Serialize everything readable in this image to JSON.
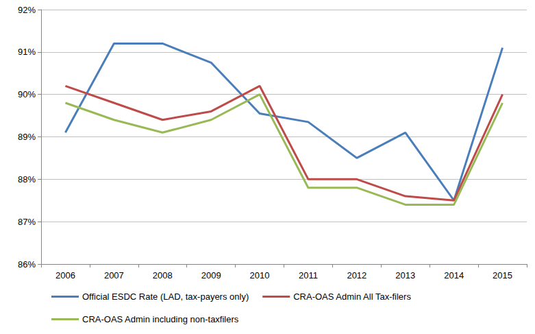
{
  "chart_data": {
    "type": "line",
    "categories": [
      "2006",
      "2007",
      "2008",
      "2009",
      "2010",
      "2011",
      "2012",
      "2013",
      "2014",
      "2015"
    ],
    "series": [
      {
        "name": "Official ESDC Rate (LAD, tax-payers only)",
        "color": "#4a7ebb",
        "values": [
          89.1,
          91.2,
          91.2,
          90.75,
          89.55,
          89.35,
          88.5,
          89.1,
          87.5,
          91.1
        ]
      },
      {
        "name": "CRA-OAS Admin All Tax-filers",
        "color": "#be4b48",
        "values": [
          90.2,
          89.8,
          89.4,
          89.6,
          90.2,
          88.0,
          88.0,
          87.6,
          87.5,
          90.0
        ]
      },
      {
        "name": "CRA-OAS Admin including non-taxfilers",
        "color": "#98b954",
        "values": [
          89.8,
          89.4,
          89.1,
          89.4,
          90.0,
          87.8,
          87.8,
          87.4,
          87.4,
          89.8
        ]
      }
    ],
    "ylim": [
      86,
      92
    ],
    "yticks": [
      {
        "value": 86,
        "label": "86%"
      },
      {
        "value": 87,
        "label": "87%"
      },
      {
        "value": 88,
        "label": "88%"
      },
      {
        "value": 89,
        "label": "89%"
      },
      {
        "value": 90,
        "label": "90%"
      },
      {
        "value": 91,
        "label": "91%"
      },
      {
        "value": 92,
        "label": "92%"
      }
    ],
    "grid": true,
    "legend": "bottom"
  }
}
